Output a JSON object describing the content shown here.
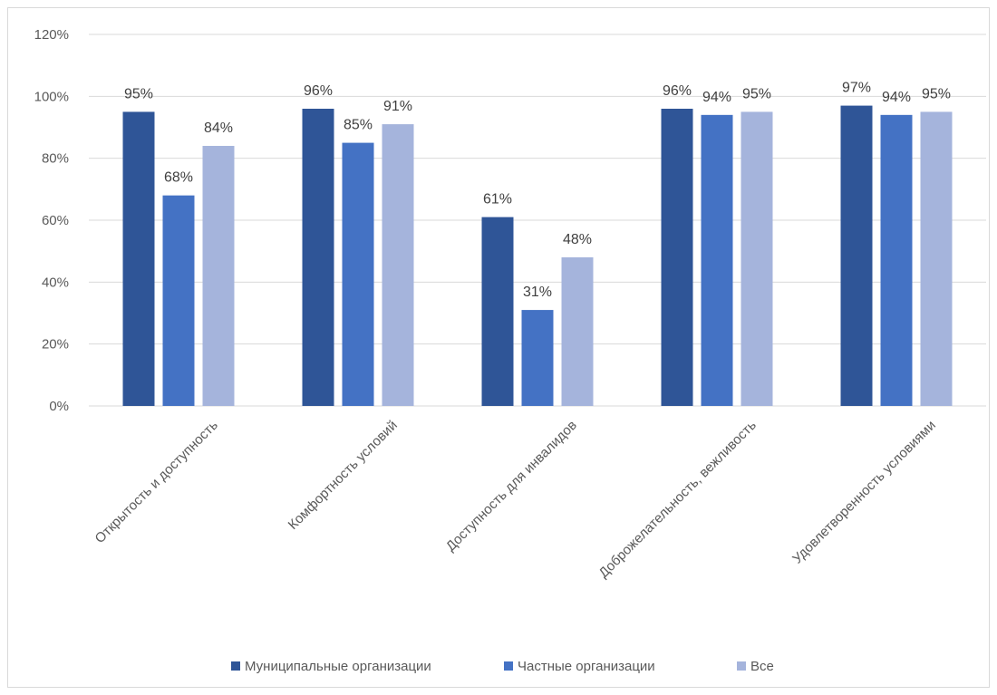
{
  "chart_data": {
    "type": "bar",
    "title": "",
    "xlabel": "",
    "ylabel": "",
    "ylim": [
      0,
      120
    ],
    "yticks": [
      0,
      20,
      40,
      60,
      80,
      100,
      120
    ],
    "ytick_labels": [
      "0%",
      "20%",
      "40%",
      "60%",
      "80%",
      "100%",
      "120%"
    ],
    "grid": true,
    "legend_position": "bottom",
    "categories": [
      "Открытость и доступность",
      "Комфортность условий",
      "Доступность для инвалидов",
      "Доброжелательность, вежливость",
      "Удовлетворенность условиями"
    ],
    "series": [
      {
        "name": "Муниципальные организации",
        "color": "#2f5597",
        "values": [
          95,
          96,
          61,
          96,
          97
        ],
        "labels": [
          "95%",
          "96%",
          "61%",
          "96%",
          "97%"
        ]
      },
      {
        "name": "Частные организации",
        "color": "#4472c4",
        "values": [
          68,
          85,
          31,
          94,
          94
        ],
        "labels": [
          "68%",
          "85%",
          "31%",
          "94%",
          "94%"
        ]
      },
      {
        "name": "Все",
        "color": "#a5b4dc",
        "values": [
          84,
          91,
          48,
          95,
          95
        ],
        "labels": [
          "84%",
          "91%",
          "48%",
          "95%",
          "95%"
        ]
      }
    ]
  }
}
